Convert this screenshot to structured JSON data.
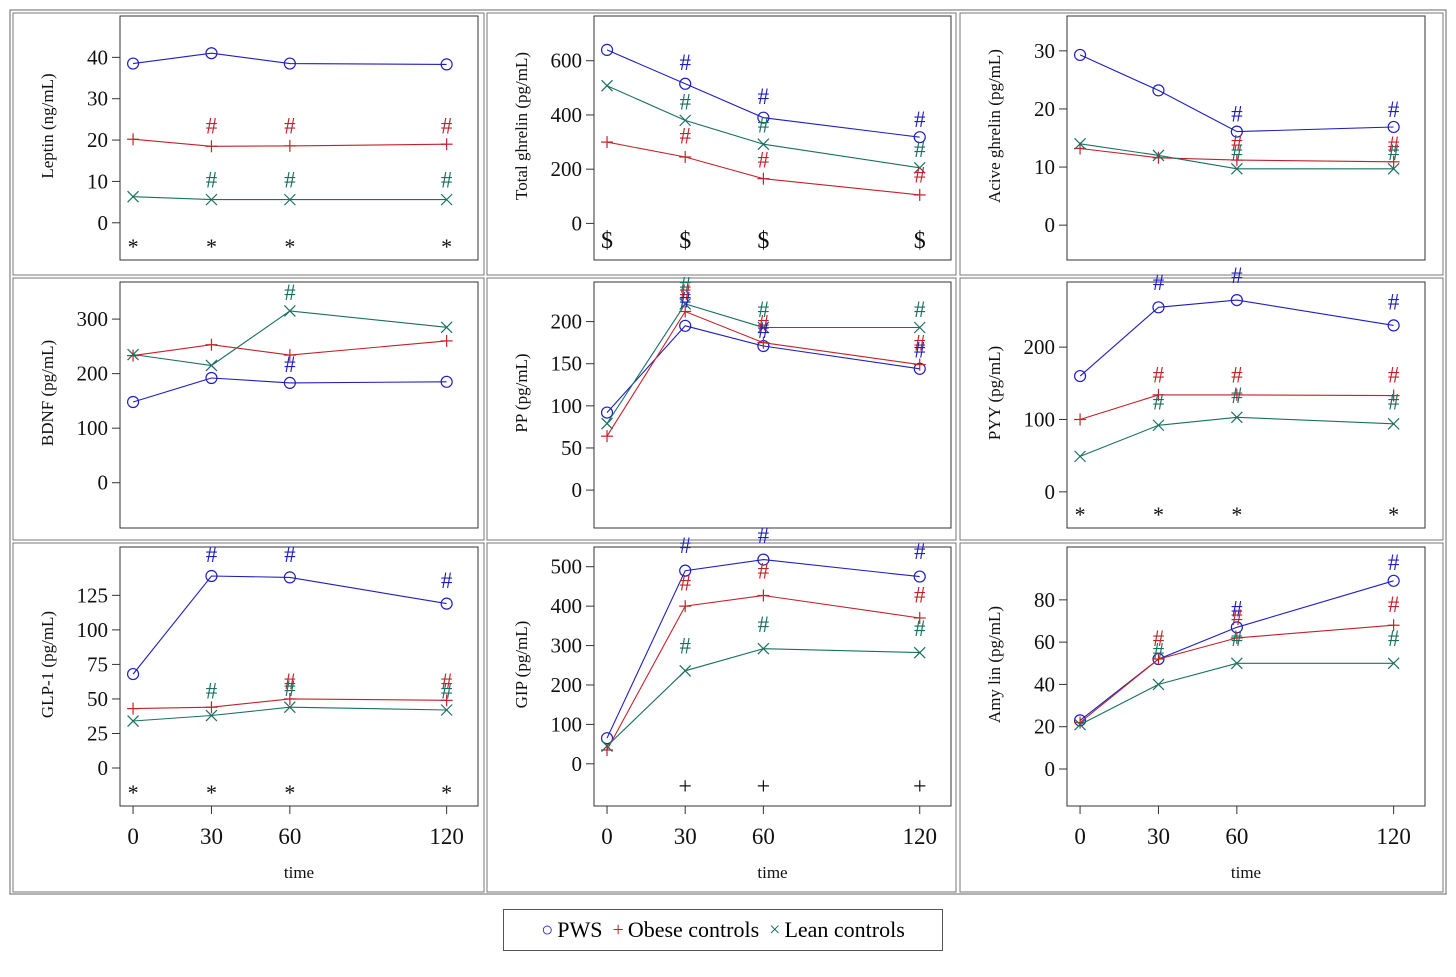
{
  "figure": {
    "colors": {
      "PWS": "#1f1fbf",
      "Obese controls": "#c4222a",
      "Lean controls": "#1a7060",
      "axis": "#333333",
      "marker": "#111111"
    },
    "time_label": "time",
    "legend": [
      {
        "symbol": "○",
        "label": "PWS",
        "color": "#1f1fbf"
      },
      {
        "symbol": "+",
        "label": "Obese controls",
        "color": "#c4222a"
      },
      {
        "symbol": "×",
        "label": "Lean controls",
        "color": "#1a7060"
      }
    ]
  },
  "chart_data": [
    {
      "type": "line",
      "ylabel": "Leptin (ng/mL)",
      "x": [
        0,
        30,
        60,
        120
      ],
      "xlim": [
        -5,
        132
      ],
      "ylim": [
        -9,
        50
      ],
      "yticks": [
        0,
        10,
        20,
        30,
        40
      ],
      "series": [
        {
          "name": "PWS",
          "values": [
            38.5,
            41,
            38.5,
            38.3
          ]
        },
        {
          "name": "Obese controls",
          "values": [
            20.2,
            18.5,
            18.6,
            19
          ]
        },
        {
          "name": "Lean controls",
          "values": [
            6.3,
            5.6,
            5.6,
            5.6
          ]
        }
      ],
      "annotations": [
        {
          "text": "#",
          "x": 30,
          "y": 23.5,
          "series": "Obese controls"
        },
        {
          "text": "#",
          "x": 60,
          "y": 23.5,
          "series": "Obese controls"
        },
        {
          "text": "#",
          "x": 120,
          "y": 23.5,
          "series": "Obese controls"
        },
        {
          "text": "#",
          "x": 30,
          "y": 10.5,
          "series": "Lean controls"
        },
        {
          "text": "#",
          "x": 60,
          "y": 10.5,
          "series": "Lean controls"
        },
        {
          "text": "#",
          "x": 120,
          "y": 10.5,
          "series": "Lean controls"
        }
      ],
      "bottom_markers": [
        {
          "x": 0,
          "text": "*"
        },
        {
          "x": 30,
          "text": "*"
        },
        {
          "x": 60,
          "text": "*"
        },
        {
          "x": 120,
          "text": "*"
        }
      ]
    },
    {
      "type": "line",
      "ylabel": "Total ghrelin (pg/mL)",
      "x": [
        0,
        30,
        60,
        120
      ],
      "xlim": [
        -5,
        132
      ],
      "ylim": [
        -135,
        765
      ],
      "yticks": [
        0,
        200,
        400,
        600
      ],
      "series": [
        {
          "name": "PWS",
          "values": [
            640,
            515,
            390,
            318
          ]
        },
        {
          "name": "Obese controls",
          "values": [
            300,
            245,
            165,
            105
          ]
        },
        {
          "name": "Lean controls",
          "values": [
            508,
            380,
            292,
            205
          ]
        }
      ],
      "annotations": [
        {
          "text": "#",
          "x": 30,
          "y": 595,
          "series": "PWS"
        },
        {
          "text": "#",
          "x": 60,
          "y": 470,
          "series": "PWS"
        },
        {
          "text": "#",
          "x": 120,
          "y": 385,
          "series": "PWS"
        },
        {
          "text": "#",
          "x": 30,
          "y": 450,
          "series": "Lean controls"
        },
        {
          "text": "#",
          "x": 60,
          "y": 365,
          "series": "Lean controls"
        },
        {
          "text": "#",
          "x": 120,
          "y": 275,
          "series": "Lean controls"
        },
        {
          "text": "#",
          "x": 30,
          "y": 325,
          "series": "Obese controls"
        },
        {
          "text": "#",
          "x": 60,
          "y": 235,
          "series": "Obese controls"
        },
        {
          "text": "#",
          "x": 120,
          "y": 180,
          "series": "Obese controls"
        }
      ],
      "bottom_markers": [
        {
          "x": 0,
          "text": "$"
        },
        {
          "x": 30,
          "text": "$"
        },
        {
          "x": 60,
          "text": "$"
        },
        {
          "x": 120,
          "text": "$"
        }
      ]
    },
    {
      "type": "line",
      "ylabel": "Acive ghrelin (pg/mL)",
      "x": [
        0,
        30,
        60,
        120
      ],
      "xlim": [
        -5,
        132
      ],
      "ylim": [
        -6,
        36
      ],
      "yticks": [
        0,
        10,
        20,
        30
      ],
      "series": [
        {
          "name": "PWS",
          "values": [
            29.3,
            23.2,
            16.1,
            16.9
          ]
        },
        {
          "name": "Obese controls",
          "values": [
            13.2,
            11.6,
            11.2,
            10.9
          ]
        },
        {
          "name": "Lean controls",
          "values": [
            14,
            12,
            9.7,
            9.7
          ]
        }
      ],
      "annotations": [
        {
          "text": "#",
          "x": 60,
          "y": 19.2,
          "series": "PWS"
        },
        {
          "text": "#",
          "x": 120,
          "y": 20,
          "series": "PWS"
        },
        {
          "text": "#",
          "x": 60,
          "y": 14.2,
          "series": "Obese controls"
        },
        {
          "text": "#",
          "x": 120,
          "y": 14,
          "series": "Obese controls"
        },
        {
          "text": "#",
          "x": 60,
          "y": 12.6,
          "series": "Lean controls"
        },
        {
          "text": "#",
          "x": 120,
          "y": 12.6,
          "series": "Lean controls"
        }
      ],
      "bottom_markers": []
    },
    {
      "type": "line",
      "ylabel": "BDNF (pg/mL)",
      "x": [
        0,
        30,
        60,
        120
      ],
      "xlim": [
        -5,
        132
      ],
      "ylim": [
        -83,
        368
      ],
      "yticks": [
        0,
        100,
        200,
        300
      ],
      "series": [
        {
          "name": "PWS",
          "values": [
            148,
            192,
            183,
            185
          ]
        },
        {
          "name": "Obese controls",
          "values": [
            233,
            253,
            234,
            260
          ]
        },
        {
          "name": "Lean controls",
          "values": [
            235,
            215,
            315,
            285
          ]
        }
      ],
      "annotations": [
        {
          "text": "#",
          "x": 60,
          "y": 350,
          "series": "Lean controls"
        },
        {
          "text": "#",
          "x": 60,
          "y": 218,
          "series": "PWS"
        }
      ],
      "bottom_markers": []
    },
    {
      "type": "line",
      "ylabel": "PP (pg/mL)",
      "x": [
        0,
        30,
        60,
        120
      ],
      "xlim": [
        -5,
        132
      ],
      "ylim": [
        -45,
        247
      ],
      "yticks": [
        0,
        50,
        100,
        150,
        200
      ],
      "series": [
        {
          "name": "PWS",
          "values": [
            92,
            195,
            171,
            144
          ]
        },
        {
          "name": "Obese controls",
          "values": [
            64,
            212,
            175,
            149
          ]
        },
        {
          "name": "Lean controls",
          "values": [
            79,
            221,
            193,
            193
          ]
        }
      ],
      "annotations": [
        {
          "text": "#",
          "x": 30,
          "y": 244,
          "series": "Lean controls"
        },
        {
          "text": "#",
          "x": 30,
          "y": 235,
          "series": "Obese controls"
        },
        {
          "text": "#",
          "x": 30,
          "y": 226,
          "series": "PWS"
        },
        {
          "text": "#",
          "x": 60,
          "y": 215,
          "series": "Lean controls"
        },
        {
          "text": "#",
          "x": 60,
          "y": 199,
          "series": "Obese controls"
        },
        {
          "text": "#",
          "x": 60,
          "y": 190,
          "series": "PWS"
        },
        {
          "text": "#",
          "x": 120,
          "y": 215,
          "series": "Lean controls"
        },
        {
          "text": "#",
          "x": 120,
          "y": 175,
          "series": "Obese controls"
        },
        {
          "text": "#",
          "x": 120,
          "y": 167,
          "series": "PWS"
        }
      ],
      "bottom_markers": []
    },
    {
      "type": "line",
      "ylabel": "PYY (pg/mL)",
      "x": [
        0,
        30,
        60,
        120
      ],
      "xlim": [
        -5,
        132
      ],
      "ylim": [
        -50,
        290
      ],
      "yticks": [
        0,
        100,
        200
      ],
      "series": [
        {
          "name": "PWS",
          "values": [
            160,
            255,
            265,
            230
          ]
        },
        {
          "name": "Obese controls",
          "values": [
            100,
            134,
            134,
            133
          ]
        },
        {
          "name": "Lean controls",
          "values": [
            49,
            92,
            103,
            94
          ]
        }
      ],
      "annotations": [
        {
          "text": "#",
          "x": 30,
          "y": 290,
          "series": "PWS"
        },
        {
          "text": "#",
          "x": 60,
          "y": 300,
          "series": "PWS"
        },
        {
          "text": "#",
          "x": 120,
          "y": 263,
          "series": "PWS"
        },
        {
          "text": "#",
          "x": 30,
          "y": 162,
          "series": "Obese controls"
        },
        {
          "text": "#",
          "x": 60,
          "y": 162,
          "series": "Obese controls"
        },
        {
          "text": "#",
          "x": 120,
          "y": 162,
          "series": "Obese controls"
        },
        {
          "text": "#",
          "x": 30,
          "y": 125,
          "series": "Lean controls"
        },
        {
          "text": "#",
          "x": 60,
          "y": 134,
          "series": "Lean controls"
        },
        {
          "text": "#",
          "x": 120,
          "y": 125,
          "series": "Lean controls"
        }
      ],
      "bottom_markers": [
        {
          "x": 0,
          "text": "*"
        },
        {
          "x": 30,
          "text": "*"
        },
        {
          "x": 60,
          "text": "*"
        },
        {
          "x": 120,
          "text": "*"
        }
      ]
    },
    {
      "type": "line",
      "ylabel": "GLP-1 (pg/mL)",
      "x": [
        0,
        30,
        60,
        120
      ],
      "xlim": [
        -5,
        132
      ],
      "ylim": [
        -27.5,
        160
      ],
      "yticks": [
        0,
        25,
        50,
        75,
        100,
        125
      ],
      "series": [
        {
          "name": "PWS",
          "values": [
            68,
            139,
            138,
            119
          ]
        },
        {
          "name": "Obese controls",
          "values": [
            43,
            44,
            50,
            49
          ]
        },
        {
          "name": "Lean controls",
          "values": [
            34,
            38,
            44,
            42
          ]
        }
      ],
      "annotations": [
        {
          "text": "#",
          "x": 30,
          "y": 155,
          "series": "PWS"
        },
        {
          "text": "#",
          "x": 60,
          "y": 155,
          "series": "PWS"
        },
        {
          "text": "#",
          "x": 120,
          "y": 136,
          "series": "PWS"
        },
        {
          "text": "#",
          "x": 60,
          "y": 63,
          "series": "Obese controls"
        },
        {
          "text": "#",
          "x": 120,
          "y": 63,
          "series": "Obese controls"
        },
        {
          "text": "#",
          "x": 30,
          "y": 56,
          "series": "Lean controls"
        },
        {
          "text": "#",
          "x": 60,
          "y": 58,
          "series": "Lean controls"
        },
        {
          "text": "#",
          "x": 120,
          "y": 56,
          "series": "Lean controls"
        }
      ],
      "bottom_markers": [
        {
          "x": 0,
          "text": "*"
        },
        {
          "x": 30,
          "text": "*"
        },
        {
          "x": 60,
          "text": "*"
        },
        {
          "x": 120,
          "text": "*"
        }
      ]
    },
    {
      "type": "line",
      "ylabel": "GIP (pg/mL)",
      "x": [
        0,
        30,
        60,
        120
      ],
      "xlim": [
        -5,
        132
      ],
      "ylim": [
        -107,
        550
      ],
      "yticks": [
        0,
        100,
        200,
        300,
        400,
        500
      ],
      "series": [
        {
          "name": "PWS",
          "values": [
            65,
            490,
            518,
            475
          ]
        },
        {
          "name": "Obese controls",
          "values": [
            35,
            400,
            427,
            370
          ]
        },
        {
          "name": "Lean controls",
          "values": [
            45,
            236,
            292,
            282
          ]
        }
      ],
      "annotations": [
        {
          "text": "#",
          "x": 30,
          "y": 555,
          "series": "PWS"
        },
        {
          "text": "#",
          "x": 60,
          "y": 580,
          "series": "PWS"
        },
        {
          "text": "#",
          "x": 120,
          "y": 540,
          "series": "PWS"
        },
        {
          "text": "#",
          "x": 30,
          "y": 460,
          "series": "Obese controls"
        },
        {
          "text": "#",
          "x": 60,
          "y": 490,
          "series": "Obese controls"
        },
        {
          "text": "#",
          "x": 120,
          "y": 430,
          "series": "Obese controls"
        },
        {
          "text": "#",
          "x": 30,
          "y": 300,
          "series": "Lean controls"
        },
        {
          "text": "#",
          "x": 60,
          "y": 355,
          "series": "Lean controls"
        },
        {
          "text": "#",
          "x": 120,
          "y": 345,
          "series": "Lean controls"
        }
      ],
      "bottom_markers": [
        {
          "x": 30,
          "text": "+"
        },
        {
          "x": 60,
          "text": "+"
        },
        {
          "x": 120,
          "text": "+"
        }
      ]
    },
    {
      "type": "line",
      "ylabel": "Amy lin (pg/mL)",
      "x": [
        0,
        30,
        60,
        120
      ],
      "xlim": [
        -5,
        132
      ],
      "ylim": [
        -17.5,
        105
      ],
      "yticks": [
        0,
        20,
        40,
        60,
        80
      ],
      "series": [
        {
          "name": "PWS",
          "values": [
            23,
            52,
            67,
            89
          ]
        },
        {
          "name": "Obese controls",
          "values": [
            22,
            52,
            62,
            68
          ]
        },
        {
          "name": "Lean controls",
          "values": [
            21,
            40,
            50,
            50
          ]
        }
      ],
      "annotations": [
        {
          "text": "#",
          "x": 120,
          "y": 98,
          "series": "PWS"
        },
        {
          "text": "#",
          "x": 60,
          "y": 76,
          "series": "PWS"
        },
        {
          "text": "#",
          "x": 30,
          "y": 62,
          "series": "Obese controls"
        },
        {
          "text": "#",
          "x": 60,
          "y": 72,
          "series": "Obese controls"
        },
        {
          "text": "#",
          "x": 120,
          "y": 78,
          "series": "Obese controls"
        },
        {
          "text": "#",
          "x": 30,
          "y": 56,
          "series": "Lean controls"
        },
        {
          "text": "#",
          "x": 60,
          "y": 62,
          "series": "Lean controls"
        },
        {
          "text": "#",
          "x": 120,
          "y": 62,
          "series": "Lean controls"
        }
      ],
      "bottom_markers": []
    }
  ]
}
